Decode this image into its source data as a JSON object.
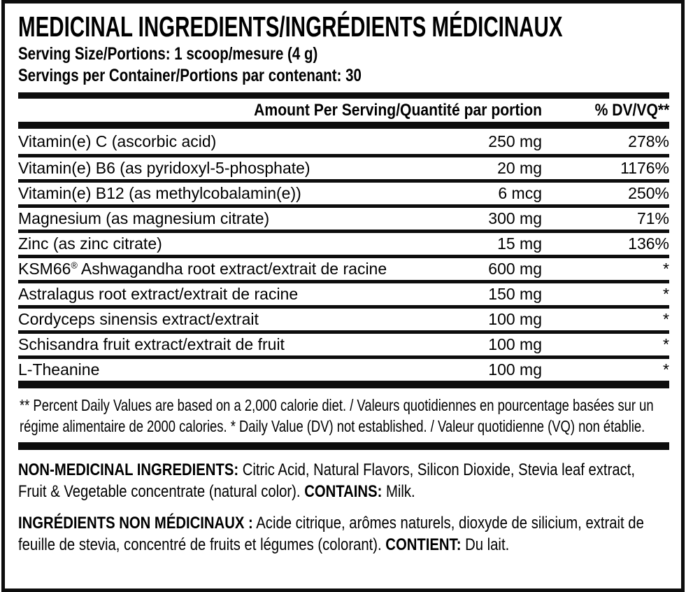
{
  "header": {
    "title": "MEDICINAL INGREDIENTS/INGRÉDIENTS MÉDICINAUX",
    "serving_size": "Serving Size/Portions: 1 scoop/mesure (4 g)",
    "servings_per_container": "Servings per Container/Portions par contenant: 30"
  },
  "table": {
    "columns": {
      "amount": "Amount Per Serving/Quantité par portion",
      "dv": "% DV/VQ**"
    },
    "rows": [
      {
        "name": "Vitamin(e) C (ascorbic acid)",
        "amount": "250 mg",
        "dv": "278%"
      },
      {
        "name": "Vitamin(e) B6 (as pyridoxyl-5-phosphate)",
        "amount": "20 mg",
        "dv": "1176%"
      },
      {
        "name": "Vitamin(e) B12 (as methylcobalamin(e))",
        "amount": "6 mcg",
        "dv": "250%"
      },
      {
        "name": "Magnesium (as magnesium citrate)",
        "amount": "300 mg",
        "dv": "71%"
      },
      {
        "name": "Zinc (as zinc citrate)",
        "amount": "15 mg",
        "dv": "136%"
      },
      {
        "name": "KSM66® Ashwagandha root extract/extrait de racine",
        "amount": "600 mg",
        "dv": "*"
      },
      {
        "name": "Astralagus root extract/extrait de racine",
        "amount": "150 mg",
        "dv": "*"
      },
      {
        "name": "Cordyceps sinensis extract/extrait",
        "amount": "100 mg",
        "dv": "*"
      },
      {
        "name": "Schisandra fruit extract/extrait de fruit",
        "amount": "100 mg",
        "dv": "*"
      },
      {
        "name": "L-Theanine",
        "amount": "100 mg",
        "dv": "*"
      }
    ]
  },
  "footnote": {
    "line1": "** Percent Daily Values are based on a 2,000 calorie diet. / Valeurs quotidiennes en pourcentage basées sur un",
    "line2": "régime alimentaire de 2000 calories. * Daily Value (DV) not established. / Valeur quotidienne (VQ) non établie."
  },
  "non_medicinal": {
    "label": "NON-MEDICINAL INGREDIENTS:",
    "line1_text": " Citric Acid, Natural Flavors, Silicon Dioxide, Stevia leaf extract,",
    "line2_text": "Fruit & Vegetable concentrate (natural color). ",
    "contains_label": "CONTAINS:",
    "contains_text": " Milk."
  },
  "non_medicinal_fr": {
    "label": "INGRÉDIENTS NON MÉDICINAUX :",
    "line1_text": " Acide citrique, arômes naturels, dioxyde de silicium, extrait de",
    "line2_text": "feuille de stevia, concentré de fruits et légumes (colorant). ",
    "contains_label": "CONTIENT:",
    "contains_text": " Du lait."
  },
  "colors": {
    "text": "#000000",
    "background": "#ffffff",
    "rule": "#0d0d0d"
  }
}
